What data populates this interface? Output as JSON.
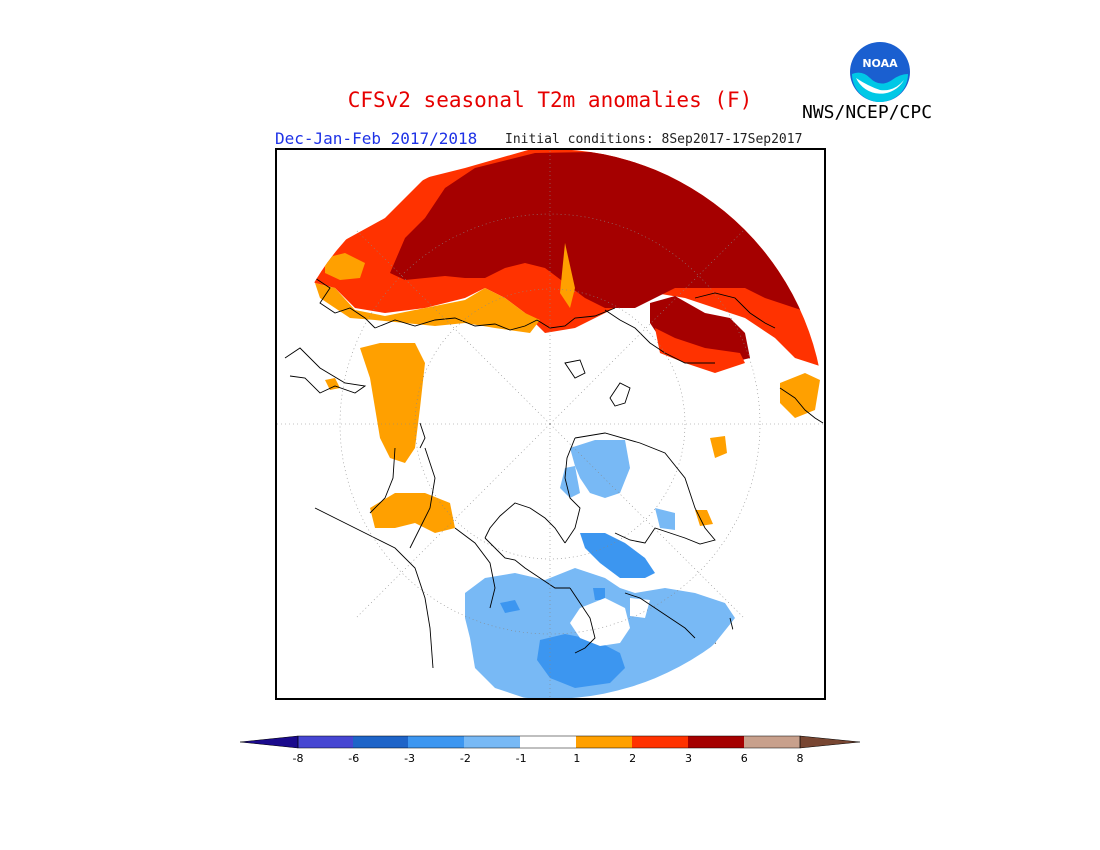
{
  "title": "CFSv2 seasonal T2m anomalies (F)",
  "agency": "NWS/NCEP/CPC",
  "logo_text": "NOAA",
  "season": "Dec-Jan-Feb 2017/2018",
  "initial_conditions": "Initial conditions: 8Sep2017-17Sep2017",
  "map": {
    "projection": "north polar stereographic",
    "colors": {
      "cold_8": "#1a0a8c",
      "cold_6": "#4646d2",
      "cold_3": "#1e64c8",
      "cold_2": "#3c96f0",
      "cold_1": "#78b9f5",
      "neutral": "#ffffff",
      "warm_1": "#ffa000",
      "warm_2": "#ff3200",
      "warm_3": "#a50000",
      "warm_6": "#c8a08c",
      "warm_8": "#784632"
    }
  },
  "colorbar": {
    "labels": [
      "-8",
      "-6",
      "-3",
      "-2",
      "-1",
      "1",
      "2",
      "3",
      "6",
      "8"
    ],
    "colors": [
      "#1a0a8c",
      "#4646d2",
      "#1e64c8",
      "#3c96f0",
      "#78b9f5",
      "#ffffff",
      "#ffa000",
      "#ff3200",
      "#a50000",
      "#c8a08c",
      "#784632"
    ]
  }
}
